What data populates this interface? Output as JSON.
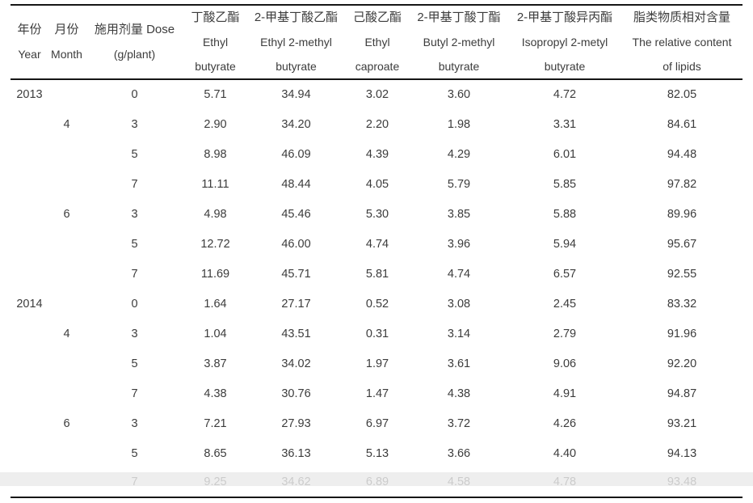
{
  "style": {
    "text_color": "#3c3c3c",
    "rule_color": "#161616",
    "background": "#ffffff"
  },
  "table": {
    "columns": [
      {
        "id": "year",
        "lines": [
          "年份",
          "Year"
        ]
      },
      {
        "id": "month",
        "lines": [
          "月份",
          "Month"
        ]
      },
      {
        "id": "dose",
        "lines": [
          "施用剂量 Dose",
          "(g/plant)"
        ]
      },
      {
        "id": "ethyl-butyrate",
        "lines": [
          "丁酸乙酯",
          "Ethyl",
          "butyrate"
        ]
      },
      {
        "id": "ethyl-2-methyl-butyrate",
        "lines": [
          "2-甲基丁酸乙酯",
          "Ethyl 2-methyl",
          "butyrate"
        ]
      },
      {
        "id": "ethyl-caproate",
        "lines": [
          "己酸乙酯",
          "Ethyl",
          "caproate"
        ]
      },
      {
        "id": "butyl-2-methyl-butyrate",
        "lines": [
          "2-甲基丁酸丁酯",
          "Butyl 2-methyl",
          "butyrate"
        ]
      },
      {
        "id": "isopropyl-2-metyl-butyrate",
        "lines": [
          "2-甲基丁酸异丙酯",
          "Isopropyl 2-metyl",
          "butyrate"
        ]
      },
      {
        "id": "relative-content-of-lipids",
        "lines": [
          "脂类物质相对含量",
          "The relative content",
          "of lipids"
        ]
      }
    ],
    "rows": [
      [
        "2013",
        "",
        "0",
        "5.71",
        "34.94",
        "3.02",
        "3.60",
        "4.72",
        "82.05"
      ],
      [
        "",
        "4",
        "3",
        "2.90",
        "34.20",
        "2.20",
        "1.98",
        "3.31",
        "84.61"
      ],
      [
        "",
        "",
        "5",
        "8.98",
        "46.09",
        "4.39",
        "4.29",
        "6.01",
        "94.48"
      ],
      [
        "",
        "",
        "7",
        "11.11",
        "48.44",
        "4.05",
        "5.79",
        "5.85",
        "97.82"
      ],
      [
        "",
        "6",
        "3",
        "4.98",
        "45.46",
        "5.30",
        "3.85",
        "5.88",
        "89.96"
      ],
      [
        "",
        "",
        "5",
        "12.72",
        "46.00",
        "4.74",
        "3.96",
        "5.94",
        "95.67"
      ],
      [
        "",
        "",
        "7",
        "11.69",
        "45.71",
        "5.81",
        "4.74",
        "6.57",
        "92.55"
      ],
      [
        "2014",
        "",
        "0",
        "1.64",
        "27.17",
        "0.52",
        "3.08",
        "2.45",
        "83.32"
      ],
      [
        "",
        "4",
        "3",
        "1.04",
        "43.51",
        "0.31",
        "3.14",
        "2.79",
        "91.96"
      ],
      [
        "",
        "",
        "5",
        "3.87",
        "34.02",
        "1.97",
        "3.61",
        "9.06",
        "92.20"
      ],
      [
        "",
        "",
        "7",
        "4.38",
        "30.76",
        "1.47",
        "4.38",
        "4.91",
        "94.87"
      ],
      [
        "",
        "6",
        "3",
        "7.21",
        "27.93",
        "6.97",
        "3.72",
        "4.26",
        "93.21"
      ],
      [
        "",
        "",
        "5",
        "8.65",
        "36.13",
        "5.13",
        "3.66",
        "4.40",
        "94.13"
      ],
      [
        "",
        "",
        "7",
        "9.25",
        "34.62",
        "6.89",
        "4.58",
        "4.78",
        "93.48"
      ]
    ]
  }
}
